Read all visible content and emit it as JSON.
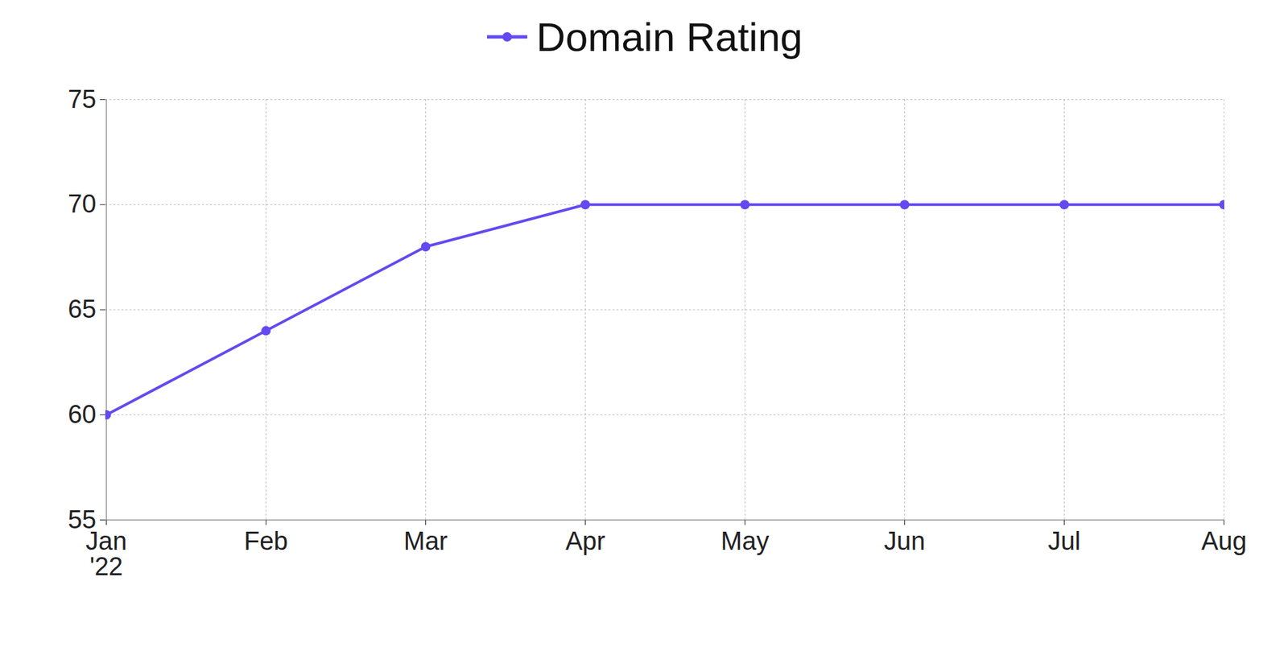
{
  "chart_data": {
    "type": "line",
    "categories": [
      "Jan '22",
      "Feb",
      "Mar",
      "Apr",
      "May",
      "Jun",
      "Jul",
      "Aug"
    ],
    "series": [
      {
        "name": "Domain Rating",
        "color": "#634af0",
        "marker": "circle",
        "values": [
          60,
          64,
          68,
          70,
          70,
          70,
          70,
          70
        ]
      }
    ],
    "ylim": [
      55,
      75
    ],
    "yticks": [
      55,
      60,
      65,
      70,
      75
    ],
    "grid": true,
    "legend": "top"
  }
}
